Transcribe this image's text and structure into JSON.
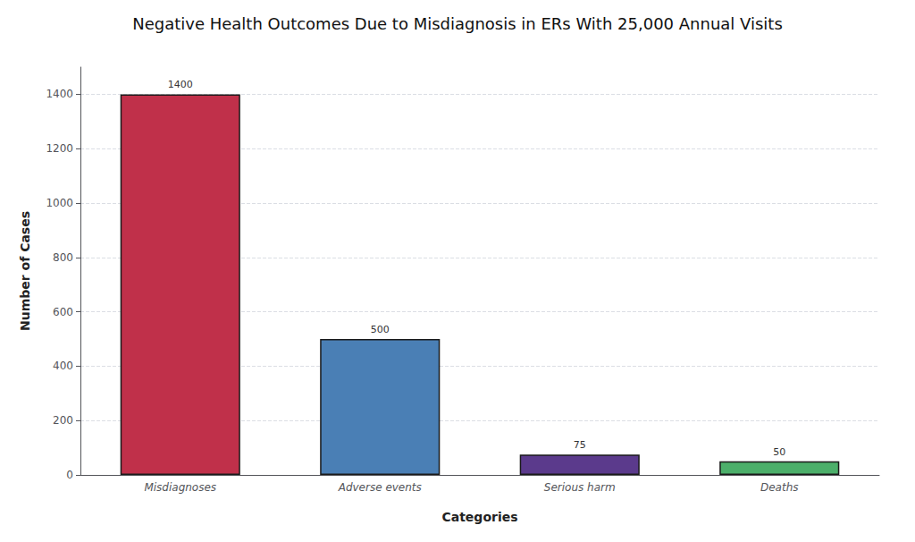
{
  "chart_data": {
    "type": "bar",
    "title": "Negative Health Outcomes Due to Misdiagnosis in ERs With 25,000 Annual Visits",
    "xlabel": "Categories",
    "ylabel": "Number of Cases",
    "categories": [
      "Misdiagnoses",
      "Adverse events",
      "Serious harm",
      "Deaths"
    ],
    "values": [
      1400,
      500,
      75,
      50
    ],
    "colors": [
      "#C0304A",
      "#4A7FB5",
      "#5B3A8C",
      "#4CAF6A"
    ],
    "ylim": [
      0,
      1500
    ],
    "yticks": [
      0,
      200,
      400,
      600,
      800,
      1000,
      1200,
      1400
    ],
    "grid": true,
    "data_labels": true
  }
}
